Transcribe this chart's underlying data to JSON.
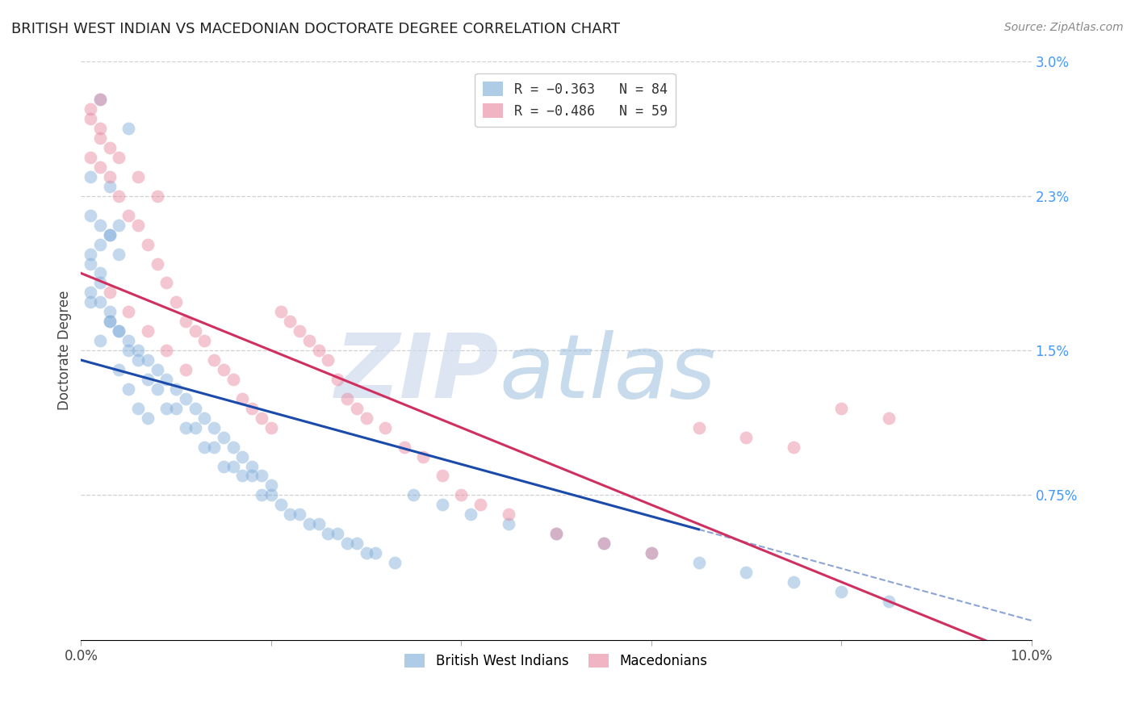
{
  "title": "BRITISH WEST INDIAN VS MACEDONIAN DOCTORATE DEGREE CORRELATION CHART",
  "source": "Source: ZipAtlas.com",
  "ylabel": "Doctorate Degree",
  "xlim": [
    0.0,
    0.1
  ],
  "ylim": [
    0.0,
    0.03
  ],
  "yticks_right": [
    0.03,
    0.023,
    0.015,
    0.0075
  ],
  "ytick_right_labels": [
    "3.0%",
    "2.3%",
    "1.5%",
    "0.75%"
  ],
  "blue_color": "#7aaad8",
  "pink_color": "#e8829a",
  "blue_line_color": "#1a4aaa",
  "pink_line_color": "#d03060",
  "background_color": "#ffffff",
  "grid_color": "#cccccc",
  "blue_line_intercept": 0.0145,
  "blue_line_slope": -0.135,
  "blue_line_solid_end": 0.065,
  "pink_line_intercept": 0.019,
  "pink_line_slope": -0.2,
  "blue_x": [
    0.002,
    0.005,
    0.001,
    0.003,
    0.001,
    0.002,
    0.003,
    0.004,
    0.001,
    0.002,
    0.001,
    0.002,
    0.003,
    0.004,
    0.005,
    0.006,
    0.007,
    0.008,
    0.009,
    0.01,
    0.011,
    0.012,
    0.013,
    0.014,
    0.015,
    0.016,
    0.017,
    0.018,
    0.019,
    0.02,
    0.003,
    0.005,
    0.007,
    0.009,
    0.011,
    0.013,
    0.015,
    0.017,
    0.019,
    0.021,
    0.023,
    0.025,
    0.027,
    0.029,
    0.031,
    0.033,
    0.035,
    0.038,
    0.041,
    0.045,
    0.05,
    0.055,
    0.06,
    0.065,
    0.07,
    0.075,
    0.08,
    0.085,
    0.004,
    0.006,
    0.008,
    0.01,
    0.012,
    0.014,
    0.016,
    0.018,
    0.02,
    0.022,
    0.024,
    0.026,
    0.028,
    0.03,
    0.002,
    0.001,
    0.003,
    0.002,
    0.004,
    0.005,
    0.006,
    0.007,
    0.001,
    0.002,
    0.003,
    0.004
  ],
  "blue_y": [
    0.028,
    0.0265,
    0.024,
    0.0235,
    0.022,
    0.0215,
    0.021,
    0.02,
    0.0195,
    0.0185,
    0.018,
    0.0175,
    0.0165,
    0.016,
    0.0155,
    0.015,
    0.0145,
    0.014,
    0.0135,
    0.013,
    0.0125,
    0.012,
    0.0115,
    0.011,
    0.0105,
    0.01,
    0.0095,
    0.009,
    0.0085,
    0.008,
    0.017,
    0.015,
    0.0135,
    0.012,
    0.011,
    0.01,
    0.009,
    0.0085,
    0.0075,
    0.007,
    0.0065,
    0.006,
    0.0055,
    0.005,
    0.0045,
    0.004,
    0.0075,
    0.007,
    0.0065,
    0.006,
    0.0055,
    0.005,
    0.0045,
    0.004,
    0.0035,
    0.003,
    0.0025,
    0.002,
    0.016,
    0.0145,
    0.013,
    0.012,
    0.011,
    0.01,
    0.009,
    0.0085,
    0.0075,
    0.0065,
    0.006,
    0.0055,
    0.005,
    0.0045,
    0.019,
    0.0175,
    0.0165,
    0.0155,
    0.014,
    0.013,
    0.012,
    0.0115,
    0.02,
    0.0205,
    0.021,
    0.0215
  ],
  "pink_x": [
    0.001,
    0.002,
    0.003,
    0.004,
    0.005,
    0.006,
    0.007,
    0.008,
    0.009,
    0.01,
    0.011,
    0.012,
    0.013,
    0.014,
    0.015,
    0.016,
    0.017,
    0.018,
    0.019,
    0.02,
    0.021,
    0.022,
    0.023,
    0.024,
    0.025,
    0.026,
    0.027,
    0.028,
    0.029,
    0.03,
    0.032,
    0.034,
    0.036,
    0.038,
    0.04,
    0.042,
    0.045,
    0.05,
    0.055,
    0.06,
    0.065,
    0.07,
    0.075,
    0.08,
    0.085,
    0.003,
    0.005,
    0.007,
    0.009,
    0.011,
    0.002,
    0.004,
    0.006,
    0.008,
    0.001,
    0.002,
    0.003,
    0.001,
    0.002
  ],
  "pink_y": [
    0.025,
    0.0245,
    0.024,
    0.023,
    0.022,
    0.0215,
    0.0205,
    0.0195,
    0.0185,
    0.0175,
    0.0165,
    0.016,
    0.0155,
    0.0145,
    0.014,
    0.0135,
    0.0125,
    0.012,
    0.0115,
    0.011,
    0.017,
    0.0165,
    0.016,
    0.0155,
    0.015,
    0.0145,
    0.0135,
    0.0125,
    0.012,
    0.0115,
    0.011,
    0.01,
    0.0095,
    0.0085,
    0.0075,
    0.007,
    0.0065,
    0.0055,
    0.005,
    0.0045,
    0.011,
    0.0105,
    0.01,
    0.012,
    0.0115,
    0.018,
    0.017,
    0.016,
    0.015,
    0.014,
    0.026,
    0.025,
    0.024,
    0.023,
    0.027,
    0.0265,
    0.0255,
    0.0275,
    0.028
  ]
}
